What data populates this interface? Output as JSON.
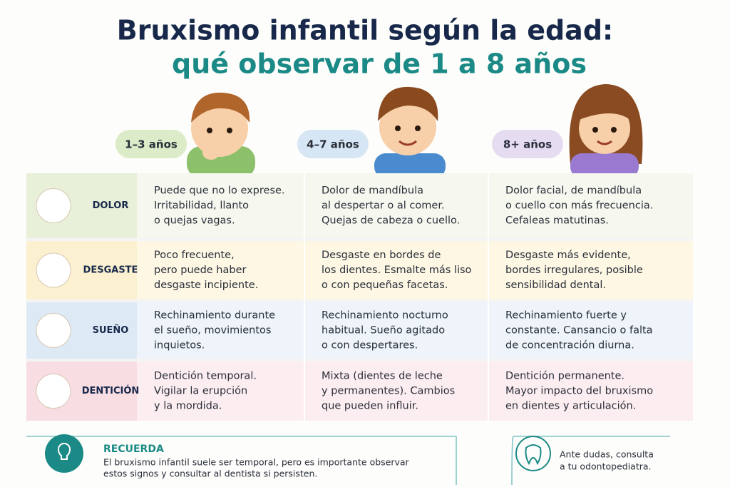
{
  "header": {
    "title": "Bruxismo infantil según la edad:",
    "subtitle": "qué observar de 1 a 8 años"
  },
  "table": {
    "columns": [
      "1–3 años",
      "4–7 años",
      "8+ años"
    ],
    "rows": [
      {
        "label": "DOLOR",
        "cells": [
          [
            "Puede que no lo exprese.",
            "Irritabilidad, llanto",
            "o quejas vagas."
          ],
          [
            "Dolor de mandíbula",
            "al despertar o al comer.",
            "Quejas de cabeza o cuello."
          ],
          [
            "Dolor facial, de mandíbula",
            "o cuello con más frecuencia.",
            "Cefaleas matutinas."
          ]
        ]
      },
      {
        "label": "DESGASTE",
        "cells": [
          [
            "Poco frecuente,",
            "pero puede haber",
            "desgaste incipiente."
          ],
          [
            "Desgaste en bordes de",
            "los dientes. Esmalte más liso",
            "o con pequeñas facetas."
          ],
          [
            "Desgaste más evidente,",
            "bordes irregulares, posible",
            "sensibilidad dental."
          ]
        ]
      },
      {
        "label": "SUEÑO",
        "cells": [
          [
            "Rechinamiento durante",
            "el sueño, movimientos",
            "inquietos."
          ],
          [
            "Rechinamiento nocturno",
            "habitual. Sueño agitado",
            "o con despertares."
          ],
          [
            "Rechinamiento fuerte y",
            "constante. Cansancio o falta",
            "de concentración diurna."
          ]
        ]
      },
      {
        "label": "DENTICIÓN",
        "cells": [
          [
            "Dentición temporal.",
            "Vigilar la erupción",
            "y la mordida."
          ],
          [
            "Mixta (dientes de leche",
            "y permanentes). Cambios",
            "que pueden influir."
          ],
          [
            "Dentición permanente.",
            "Mayor impacto del bruxismo",
            "en dientes y articulación."
          ]
        ]
      }
    ]
  },
  "footer": {
    "heading": "RECUERDA",
    "text": [
      "El bruxismo infantil suele ser temporal, pero es importante observar",
      "estos signos y consultar al dentista si persisten."
    ],
    "note": [
      "Ante dudas, consulta",
      "a tu odontopediatra."
    ]
  }
}
